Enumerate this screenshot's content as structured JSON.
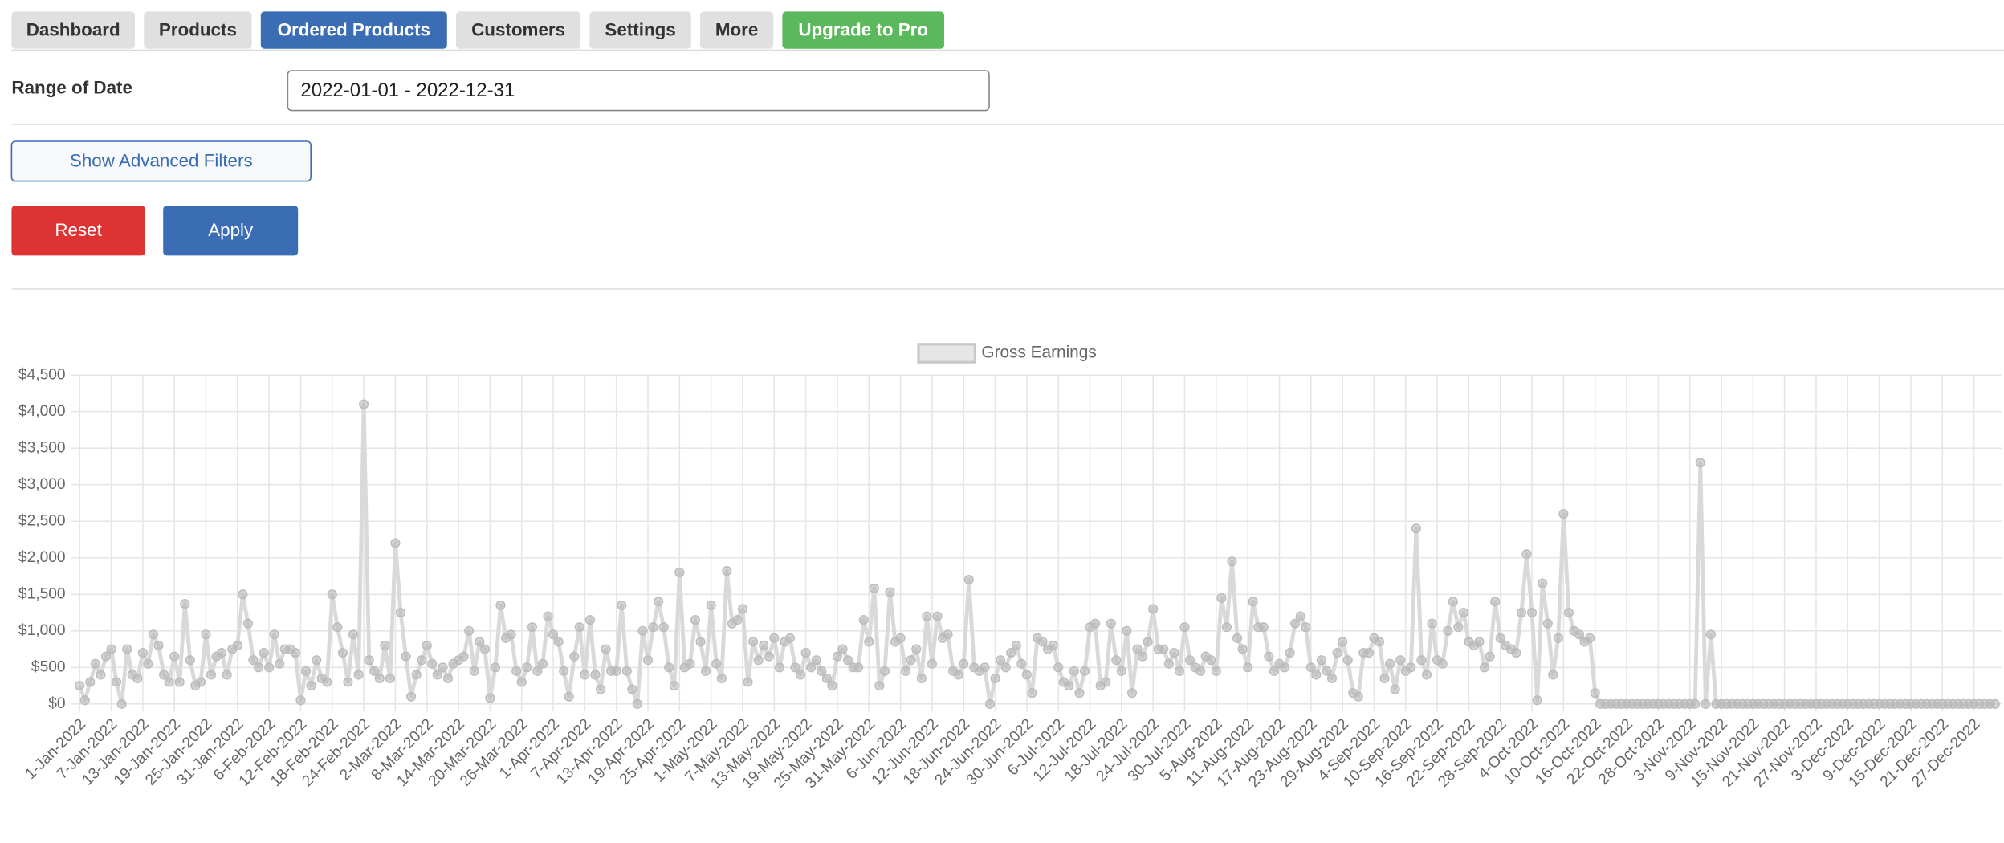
{
  "nav": {
    "tabs": [
      "Dashboard",
      "Products",
      "Ordered Products",
      "Customers",
      "Settings",
      "More",
      "Upgrade to Pro"
    ]
  },
  "form": {
    "range_label": "Range of Date",
    "range_value": "2022-01-01 - 2022-12-31",
    "advanced_button": "Show Advanced Filters",
    "reset_button": "Reset",
    "apply_button": "Apply"
  },
  "chart_data": {
    "type": "line",
    "categories": [
      "1-Jan-2022",
      null,
      null,
      null,
      null,
      null,
      "7-Jan-2022",
      null,
      null,
      null,
      null,
      null,
      "13-Jan-2022",
      null,
      null,
      null,
      null,
      null,
      "19-Jan-2022",
      null,
      null,
      null,
      null,
      null,
      "25-Jan-2022",
      null,
      null,
      null,
      null,
      null,
      "31-Jan-2022",
      null,
      null,
      null,
      null,
      null,
      "6-Feb-2022",
      null,
      null,
      null,
      null,
      null,
      "12-Feb-2022",
      null,
      null,
      null,
      null,
      null,
      "18-Feb-2022",
      null,
      null,
      null,
      null,
      null,
      "24-Feb-2022",
      null,
      null,
      null,
      null,
      null,
      "2-Mar-2022",
      null,
      null,
      null,
      null,
      null,
      "8-Mar-2022",
      null,
      null,
      null,
      null,
      null,
      "14-Mar-2022",
      null,
      null,
      null,
      null,
      null,
      "20-Mar-2022",
      null,
      null,
      null,
      null,
      null,
      "26-Mar-2022",
      null,
      null,
      null,
      null,
      null,
      "1-Apr-2022",
      null,
      null,
      null,
      null,
      null,
      "7-Apr-2022",
      null,
      null,
      null,
      null,
      null,
      "13-Apr-2022",
      null,
      null,
      null,
      null,
      null,
      "19-Apr-2022",
      null,
      null,
      null,
      null,
      null,
      "25-Apr-2022",
      null,
      null,
      null,
      null,
      null,
      "1-May-2022",
      null,
      null,
      null,
      null,
      null,
      "7-May-2022",
      null,
      null,
      null,
      null,
      null,
      "13-May-2022",
      null,
      null,
      null,
      null,
      null,
      "19-May-2022",
      null,
      null,
      null,
      null,
      null,
      "25-May-2022",
      null,
      null,
      null,
      null,
      null,
      "31-May-2022",
      null,
      null,
      null,
      null,
      null,
      "6-Jun-2022",
      null,
      null,
      null,
      null,
      null,
      "12-Jun-2022",
      null,
      null,
      null,
      null,
      null,
      "18-Jun-2022",
      null,
      null,
      null,
      null,
      null,
      "24-Jun-2022",
      null,
      null,
      null,
      null,
      null,
      "30-Jun-2022",
      null,
      null,
      null,
      null,
      null,
      "6-Jul-2022",
      null,
      null,
      null,
      null,
      null,
      "12-Jul-2022",
      null,
      null,
      null,
      null,
      null,
      "18-Jul-2022",
      null,
      null,
      null,
      null,
      null,
      "24-Jul-2022",
      null,
      null,
      null,
      null,
      null,
      "30-Jul-2022",
      null,
      null,
      null,
      null,
      null,
      "5-Aug-2022",
      null,
      null,
      null,
      null,
      null,
      "11-Aug-2022",
      null,
      null,
      null,
      null,
      null,
      "17-Aug-2022",
      null,
      null,
      null,
      null,
      null,
      "23-Aug-2022",
      null,
      null,
      null,
      null,
      null,
      "29-Aug-2022",
      null,
      null,
      null,
      null,
      null,
      "4-Sep-2022",
      null,
      null,
      null,
      null,
      null,
      "10-Sep-2022",
      null,
      null,
      null,
      null,
      null,
      "16-Sep-2022",
      null,
      null,
      null,
      null,
      null,
      "22-Sep-2022",
      null,
      null,
      null,
      null,
      null,
      "28-Sep-2022",
      null,
      null,
      null,
      null,
      null,
      "4-Oct-2022",
      null,
      null,
      null,
      null,
      null,
      "10-Oct-2022",
      null,
      null,
      null,
      null,
      null,
      "16-Oct-2022",
      null,
      null,
      null,
      null,
      null,
      "22-Oct-2022",
      null,
      null,
      null,
      null,
      null,
      "28-Oct-2022",
      null,
      null,
      null,
      null,
      null,
      "3-Nov-2022",
      null,
      null,
      null,
      null,
      null,
      "9-Nov-2022",
      null,
      null,
      null,
      null,
      null,
      "15-Nov-2022",
      null,
      null,
      null,
      null,
      null,
      "21-Nov-2022",
      null,
      null,
      null,
      null,
      null,
      "27-Nov-2022",
      null,
      null,
      null,
      null,
      null,
      "3-Dec-2022",
      null,
      null,
      null,
      null,
      null,
      "9-Dec-2022",
      null,
      null,
      null,
      null,
      null,
      "15-Dec-2022",
      null,
      null,
      null,
      null,
      null,
      "21-Dec-2022",
      null,
      null,
      null,
      null,
      null,
      "27-Dec-2022",
      null,
      null,
      null,
      null
    ],
    "series": [
      {
        "name": "Gross Earnings",
        "color": "#d9d9d9",
        "values": [
          250,
          50,
          300,
          550,
          400,
          650,
          750,
          300,
          0,
          750,
          400,
          350,
          700,
          550,
          950,
          800,
          400,
          300,
          650,
          300,
          1370,
          600,
          250,
          300,
          950,
          400,
          650,
          700,
          400,
          750,
          800,
          1500,
          1100,
          600,
          500,
          700,
          500,
          950,
          550,
          750,
          750,
          700,
          50,
          450,
          250,
          600,
          350,
          300,
          1500,
          1050,
          700,
          300,
          950,
          400,
          4100,
          600,
          450,
          350,
          800,
          350,
          2200,
          1250,
          650,
          100,
          400,
          600,
          800,
          550,
          400,
          500,
          350,
          550,
          600,
          650,
          1000,
          450,
          850,
          750,
          80,
          500,
          1350,
          900,
          950,
          450,
          300,
          500,
          1050,
          450,
          550,
          1200,
          950,
          850,
          450,
          100,
          650,
          1050,
          400,
          1150,
          400,
          200,
          750,
          450,
          450,
          1350,
          450,
          200,
          0,
          1000,
          600,
          1050,
          1400,
          1050,
          500,
          250,
          1800,
          500,
          550,
          1150,
          850,
          450,
          1350,
          550,
          350,
          1820,
          1100,
          1150,
          1300,
          300,
          850,
          600,
          800,
          650,
          900,
          500,
          850,
          900,
          500,
          400,
          700,
          500,
          600,
          450,
          350,
          250,
          650,
          750,
          600,
          500,
          500,
          1150,
          850,
          1580,
          250,
          450,
          1530,
          850,
          900,
          450,
          600,
          750,
          350,
          1200,
          550,
          1200,
          900,
          950,
          450,
          400,
          550,
          1700,
          500,
          450,
          500,
          0,
          350,
          600,
          500,
          700,
          800,
          550,
          400,
          150,
          900,
          850,
          750,
          800,
          500,
          300,
          250,
          450,
          150,
          450,
          1050,
          1100,
          250,
          300,
          1100,
          600,
          450,
          1000,
          150,
          750,
          650,
          850,
          1300,
          750,
          750,
          550,
          700,
          450,
          1050,
          600,
          500,
          450,
          650,
          600,
          450,
          1450,
          1050,
          1950,
          900,
          750,
          500,
          1400,
          1050,
          1050,
          650,
          450,
          550,
          500,
          700,
          1100,
          1200,
          1050,
          500,
          400,
          600,
          450,
          350,
          700,
          850,
          600,
          150,
          100,
          700,
          700,
          900,
          850,
          350,
          550,
          200,
          600,
          450,
          500,
          2400,
          600,
          400,
          1100,
          600,
          550,
          1000,
          1400,
          1050,
          1250,
          850,
          800,
          850,
          500,
          650,
          1400,
          900,
          800,
          750,
          700,
          1250,
          2050,
          1250,
          50,
          1650,
          1100,
          400,
          900,
          2600,
          1250,
          1000,
          950,
          850,
          900,
          150,
          0,
          0,
          0,
          0,
          0,
          0,
          0,
          0,
          0,
          0,
          0,
          0,
          0,
          0,
          0,
          0,
          0,
          0,
          0,
          3300,
          0,
          950,
          0,
          0,
          0,
          0,
          0,
          0,
          0,
          0,
          0,
          0,
          0,
          0,
          0,
          0,
          0,
          0,
          0,
          0,
          0,
          0,
          0,
          0,
          0,
          0,
          0,
          0,
          0,
          0,
          0,
          0,
          0,
          0,
          0,
          0,
          0,
          0,
          0,
          0,
          0,
          0,
          0,
          0,
          0,
          0,
          0,
          0,
          0,
          0,
          0,
          0,
          0,
          0,
          0,
          0
        ]
      }
    ],
    "ylim": [
      0,
      4500
    ],
    "yticks": [
      {
        "value": 0,
        "label": "$0"
      },
      {
        "value": 500,
        "label": "$500"
      },
      {
        "value": 1000,
        "label": "$1,000"
      },
      {
        "value": 1500,
        "label": "$1,500"
      },
      {
        "value": 2000,
        "label": "$2,000"
      },
      {
        "value": 2500,
        "label": "$2,500"
      },
      {
        "value": 3000,
        "label": "$3,000"
      },
      {
        "value": 3500,
        "label": "$3,500"
      },
      {
        "value": 4000,
        "label": "$4,000"
      },
      {
        "value": 4500,
        "label": "$4,500"
      }
    ],
    "grid": true,
    "legend": "top"
  }
}
